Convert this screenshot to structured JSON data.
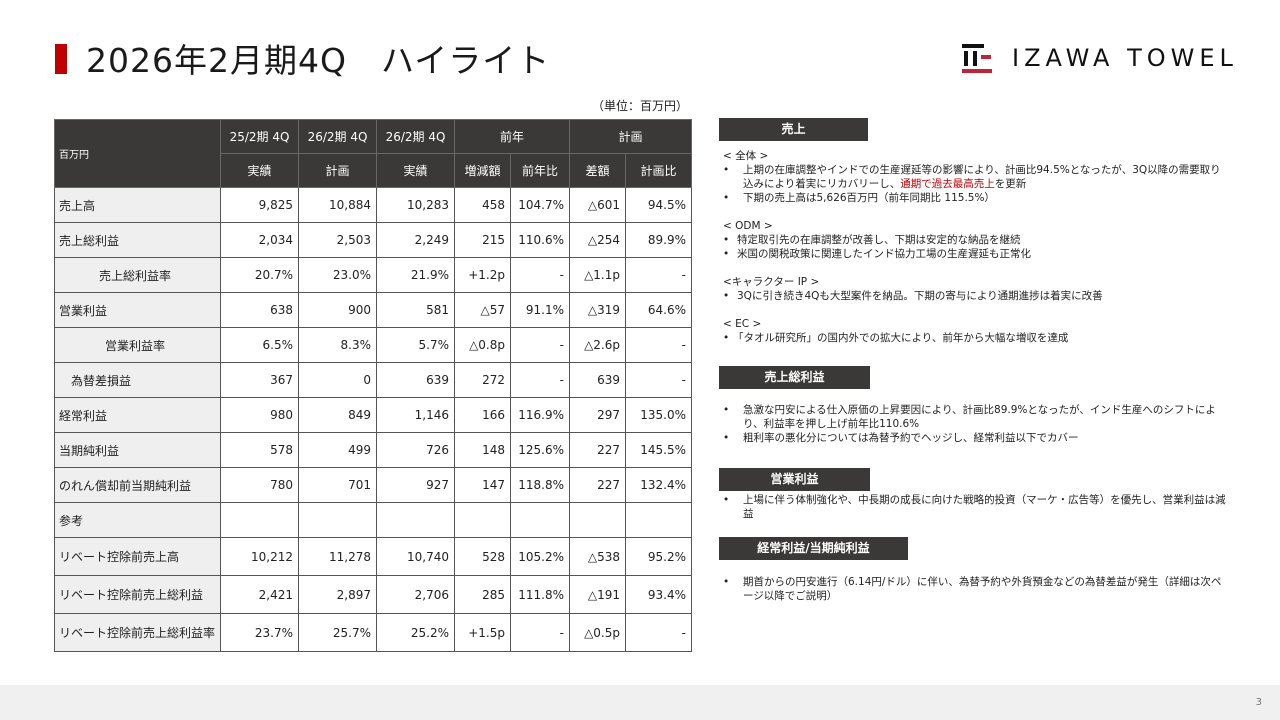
{
  "header": {
    "title": "2026年2月期4Q　ハイライト",
    "logo_text": "IZAWA TOWEL",
    "accent_color": "#c00000"
  },
  "table": {
    "unit_note": "（単位：百万円）",
    "corner_label": "百万円",
    "header_top": [
      "25/2期 4Q",
      "26/2期 4Q",
      "26/2期 4Q",
      "前年",
      "計画"
    ],
    "header_sub": [
      "実績",
      "計画",
      "実績",
      "増減額",
      "前年比",
      "差額",
      "計画比"
    ],
    "rows": [
      {
        "label": "売上高",
        "values": [
          "9,825",
          "10,884",
          "10,283",
          "458",
          "104.7%",
          "△601",
          "94.5%"
        ]
      },
      {
        "label": "売上総利益",
        "values": [
          "2,034",
          "2,503",
          "2,249",
          "215",
          "110.6%",
          "△254",
          "89.9%"
        ]
      },
      {
        "label": "売上総利益率",
        "values": [
          "20.7%",
          "23.0%",
          "21.9%",
          "+1.2p",
          "-",
          "△1.1p",
          "-"
        ]
      },
      {
        "label": "営業利益",
        "values": [
          "638",
          "900",
          "581",
          "△57",
          "91.1%",
          "△319",
          "64.6%"
        ]
      },
      {
        "label": "営業利益率",
        "values": [
          "6.5%",
          "8.3%",
          "5.7%",
          "△0.8p",
          "-",
          "△2.6p",
          "-"
        ]
      },
      {
        "label": "為替差損益",
        "values": [
          "367",
          "0",
          "639",
          "272",
          "-",
          "639",
          "-"
        ]
      },
      {
        "label": "経常利益",
        "values": [
          "980",
          "849",
          "1,146",
          "166",
          "116.9%",
          "297",
          "135.0%"
        ]
      },
      {
        "label": "当期純利益",
        "values": [
          "578",
          "499",
          "726",
          "148",
          "125.6%",
          "227",
          "145.5%"
        ]
      },
      {
        "label": "のれん償却前当期純利益",
        "values": [
          "780",
          "701",
          "927",
          "147",
          "118.8%",
          "227",
          "132.4%"
        ]
      },
      {
        "label": "参考",
        "values": [
          "",
          "",
          "",
          "",
          "",
          "",
          ""
        ]
      },
      {
        "label": "リベート控除前売上高",
        "values": [
          "10,212",
          "11,278",
          "10,740",
          "528",
          "105.2%",
          "△538",
          "95.2%"
        ]
      },
      {
        "label": "リベート控除前売上総利益",
        "values": [
          "2,421",
          "2,897",
          "2,706",
          "285",
          "111.8%",
          "△191",
          "93.4%"
        ]
      },
      {
        "label": "リベート控除前売上総利益率",
        "values": [
          "23.7%",
          "25.7%",
          "25.2%",
          "+1.5p",
          "-",
          "△0.5p",
          "-"
        ]
      }
    ]
  },
  "panel": {
    "sales": {
      "heading": "売上",
      "overall_label": "< 全体 >",
      "overall_b1_pre": "上期の在庫調整やインドでの生産遅延等の影響により、計画比94.5%となったが、3Q以降の需要取り込みにより着実にリカバリーし、",
      "overall_b1_highlight": "通期で過去最高売上",
      "overall_b1_post": "を更新",
      "overall_b2": "下期の売上高は5,626百万円（前年同期比 115.5%）",
      "odm_label": "< ODM >",
      "odm_b1": "特定取引先の在庫調整が改善し、下期は安定的な納品を継続",
      "odm_b2": "米国の関税政策に関連したインド協力工場の生産遅延も正常化",
      "ip_label": "<キャラクター IP >",
      "ip_b1": "3Qに引き続き4Qも大型案件を納品。下期の寄与により通期進捗は着実に改善",
      "ec_label": "< EC >",
      "ec_b1": "「タオル研究所」の国内外での拡大により、前年から大幅な増収を達成"
    },
    "gross_profit": {
      "heading": "売上総利益",
      "b1": "急激な円安による仕入原価の上昇要因により、計画比89.9%となったが、インド生産へのシフトにより、利益率を押し上げ前年比110.6%",
      "b2": "粗利率の悪化分については為替予約でヘッジし、経常利益以下でカバー"
    },
    "operating_profit": {
      "heading": "営業利益",
      "b1": "上場に伴う体制強化や、中長期の成長に向けた戦略的投資（マーケ・広告等）を優先し、営業利益は減益"
    },
    "ordinary_net": {
      "heading": "経常利益/当期純利益",
      "b1": "期首からの円安進行（6.14円/ドル）に伴い、為替予約や外貨預金などの為替差益が発生（詳細は次ページ以降でご説明）"
    }
  },
  "footer": {
    "page_number": "3"
  }
}
